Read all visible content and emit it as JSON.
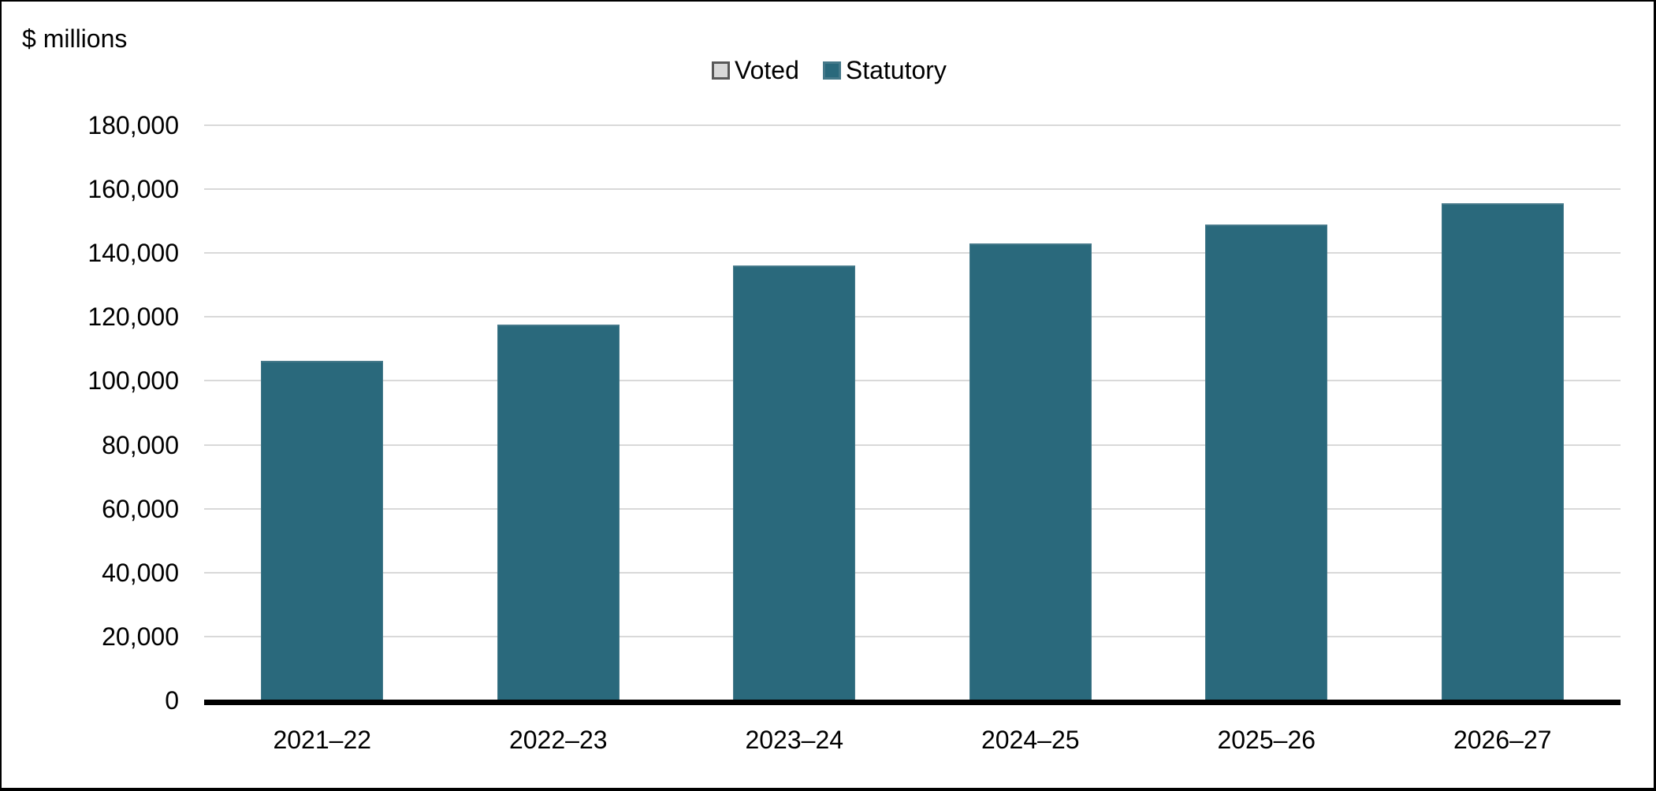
{
  "figure": {
    "unit_label": "$ millions"
  },
  "chart_data": {
    "type": "bar",
    "title": "",
    "xlabel": "",
    "ylabel": "$ millions",
    "categories": [
      "2021–22",
      "2022–23",
      "2023–24",
      "2024–25",
      "2025–26",
      "2026–27"
    ],
    "series": [
      {
        "name": "Voted",
        "color": "#d9d9d9",
        "border_color": "#595959",
        "values": [
          0,
          0,
          0,
          0,
          0,
          0
        ]
      },
      {
        "name": "Statutory",
        "color": "#2a697c",
        "border_color": "#45798a",
        "values": [
          106300,
          117500,
          136000,
          143000,
          149000,
          155500
        ]
      }
    ],
    "ylim": [
      0,
      180000
    ],
    "yticks": [
      0,
      20000,
      40000,
      60000,
      80000,
      100000,
      120000,
      140000,
      160000,
      180000
    ],
    "ytick_labels": [
      "0",
      "20,000",
      "40,000",
      "60,000",
      "80,000",
      "100,000",
      "120,000",
      "140,000",
      "160,000",
      "180,000"
    ],
    "grid": true,
    "gridline_color": "#d9d9d9",
    "axis_color": "#000000",
    "legend_position": "top-center"
  }
}
